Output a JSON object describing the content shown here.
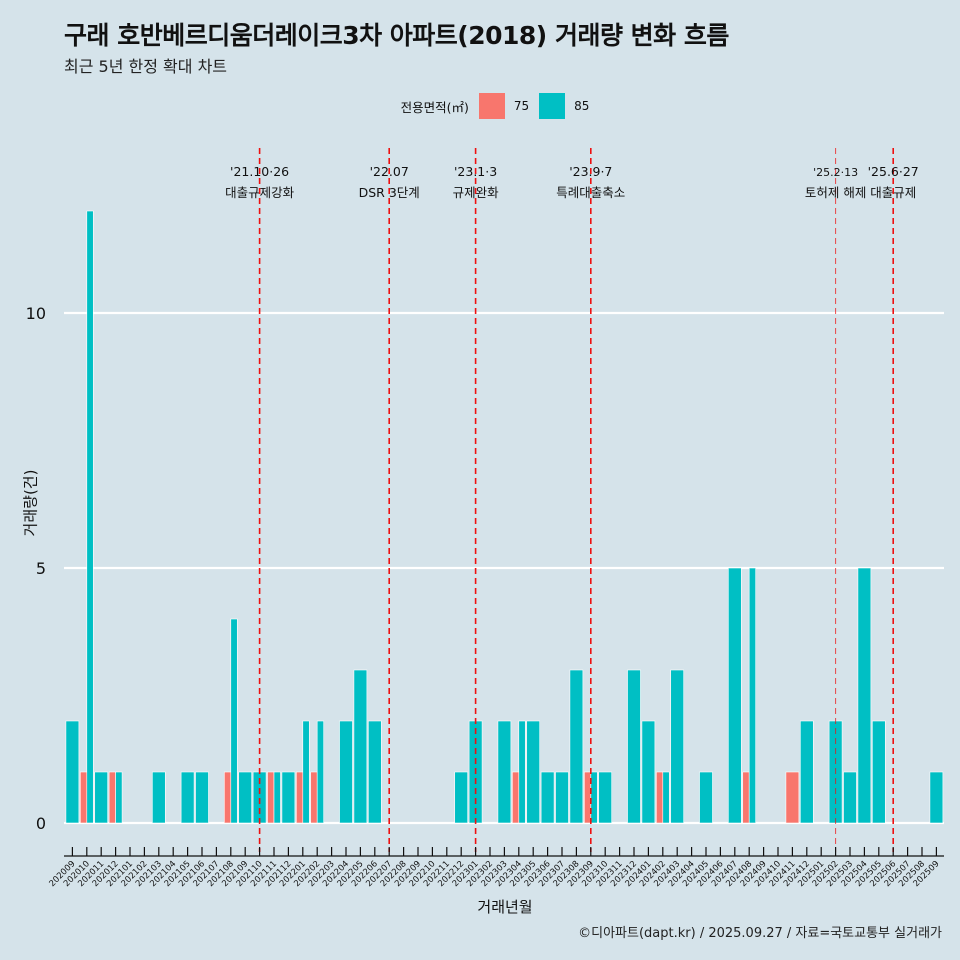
{
  "title": "구래 호반베르디움더레이크3차 아파트(2018) 거래량 변화 흐름",
  "subtitle": "최근 5년 한정 확대 차트",
  "legend": {
    "title": "전용면적(㎡)",
    "items": [
      {
        "label": "75",
        "color": "#F8766D"
      },
      {
        "label": "85",
        "color": "#00BFC4"
      }
    ]
  },
  "caption": "©디아파트(dapt.kr) / 2025.09.27 / 자료=국토교통부 실거래가",
  "chart_data": {
    "type": "bar",
    "position": "dodge",
    "title": "구래 호반베르디움더레이크3차 아파트(2018) 거래량 변화 흐름",
    "subtitle": "최근 5년 한정 확대 차트",
    "xlabel": "거래년월",
    "ylabel": "거래량(건)",
    "ylim": [
      -0.5,
      12.5
    ],
    "yticks": [
      0,
      5,
      10
    ],
    "grid": "horizontal major",
    "legend_position": "top",
    "categories": [
      "202009",
      "202010",
      "202011",
      "202012",
      "202101",
      "202102",
      "202103",
      "202104",
      "202105",
      "202106",
      "202107",
      "202108",
      "202109",
      "202110",
      "202111",
      "202112",
      "202201",
      "202202",
      "202203",
      "202204",
      "202205",
      "202206",
      "202207",
      "202208",
      "202209",
      "202210",
      "202211",
      "202212",
      "202301",
      "202302",
      "202303",
      "202304",
      "202305",
      "202306",
      "202307",
      "202308",
      "202309",
      "202310",
      "202311",
      "202312",
      "202401",
      "202402",
      "202403",
      "202404",
      "202405",
      "202406",
      "202407",
      "202408",
      "202409",
      "202410",
      "202411",
      "202412",
      "202501",
      "202502",
      "202503",
      "202504",
      "202505",
      "202506",
      "202507",
      "202508",
      "202509"
    ],
    "series": [
      {
        "name": "75",
        "color": "#F8766D",
        "values": [
          0,
          1,
          0,
          1,
          0,
          0,
          0,
          0,
          0,
          0,
          0,
          1,
          0,
          0,
          1,
          0,
          1,
          1,
          0,
          0,
          0,
          0,
          0,
          0,
          0,
          0,
          0,
          0,
          0,
          0,
          0,
          1,
          0,
          0,
          0,
          0,
          1,
          0,
          0,
          0,
          0,
          1,
          0,
          0,
          0,
          0,
          0,
          1,
          0,
          0,
          1,
          0,
          0,
          0,
          0,
          0,
          0,
          0,
          0,
          0,
          0
        ]
      },
      {
        "name": "85",
        "color": "#00BFC4",
        "values": [
          2,
          12,
          1,
          1,
          0,
          0,
          1,
          0,
          1,
          1,
          0,
          4,
          1,
          1,
          1,
          1,
          2,
          2,
          0,
          2,
          3,
          2,
          0,
          0,
          0,
          0,
          0,
          1,
          2,
          0,
          2,
          2,
          2,
          1,
          1,
          3,
          1,
          1,
          0,
          3,
          2,
          1,
          3,
          0,
          1,
          0,
          5,
          5,
          0,
          0,
          0,
          2,
          0,
          2,
          1,
          5,
          2,
          0,
          0,
          0,
          1
        ]
      }
    ],
    "annotations": [
      {
        "month": "202110",
        "date": "'21.10·26",
        "label": "대출규제강화",
        "style": "dashed"
      },
      {
        "month": "202207",
        "date": "'22.07",
        "label": "DSR 3단계",
        "style": "dashed"
      },
      {
        "month": "202301",
        "date": "'23.1·3",
        "label": "규제완화",
        "style": "dashed"
      },
      {
        "month": "202309",
        "date": "'23.9·7",
        "label": "특례대출축소",
        "style": "dashed"
      },
      {
        "month": "202502",
        "date": "'25.2·13",
        "label": "토허제 해제",
        "style": "dashed-thin"
      },
      {
        "month": "202506",
        "date": "'25.6·27",
        "label": "대출규제",
        "style": "dashed"
      }
    ]
  }
}
